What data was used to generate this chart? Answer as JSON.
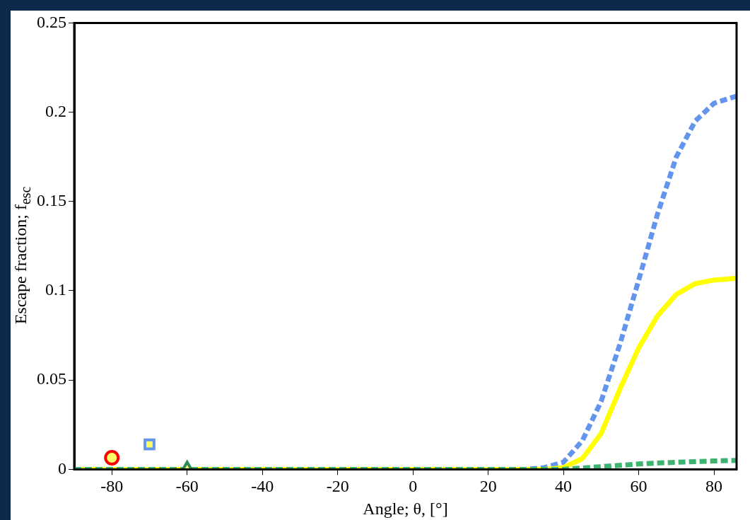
{
  "chart_data": {
    "type": "line",
    "xlabel": "Angle; θ, [°]",
    "ylabel": "Escape fraction; f$_{esc}$",
    "xlim": [
      -90,
      86
    ],
    "xticks": [
      -80,
      -60,
      -40,
      -20,
      0,
      20,
      40,
      60,
      80
    ],
    "ylim": [
      0,
      0.25
    ],
    "yticks": [
      0,
      0.05,
      0.1,
      0.15,
      0.2,
      0.25
    ],
    "grid": false,
    "legend": false,
    "series": [
      {
        "color": "#6495ed",
        "line_style": "dashed",
        "marker": "none",
        "x": [
          -90,
          30,
          35,
          40,
          45,
          50,
          55,
          60,
          65,
          70,
          75,
          80,
          86
        ],
        "values": [
          0,
          0,
          0.001,
          0.004,
          0.016,
          0.038,
          0.07,
          0.106,
          0.143,
          0.175,
          0.195,
          0.205,
          0.209
        ]
      },
      {
        "color": "#ffff00",
        "line_style": "solid",
        "marker": "none",
        "x": [
          -90,
          35,
          40,
          45,
          50,
          55,
          60,
          65,
          70,
          75,
          80,
          86
        ],
        "values": [
          0,
          0,
          0.001,
          0.006,
          0.02,
          0.045,
          0.068,
          0.086,
          0.098,
          0.104,
          0.106,
          0.107
        ]
      },
      {
        "color": "#3cb371",
        "line_style": "dashed",
        "marker": "none",
        "x": [
          -90,
          40,
          50,
          60,
          70,
          80,
          86
        ],
        "values": [
          0,
          0,
          0.0015,
          0.003,
          0.004,
          0.0047,
          0.005
        ]
      },
      {
        "type": "scatter",
        "color": "#ff0000",
        "marker": "circle",
        "x": [
          -80
        ],
        "values": [
          0.0065
        ]
      },
      {
        "type": "scatter",
        "color": "#6495ed",
        "marker": "square",
        "x": [
          -70
        ],
        "values": [
          0.014
        ]
      },
      {
        "type": "scatter",
        "color": "#2e8b57",
        "marker": "triangle",
        "x": [
          -60
        ],
        "values": [
          0.0005
        ]
      }
    ]
  }
}
